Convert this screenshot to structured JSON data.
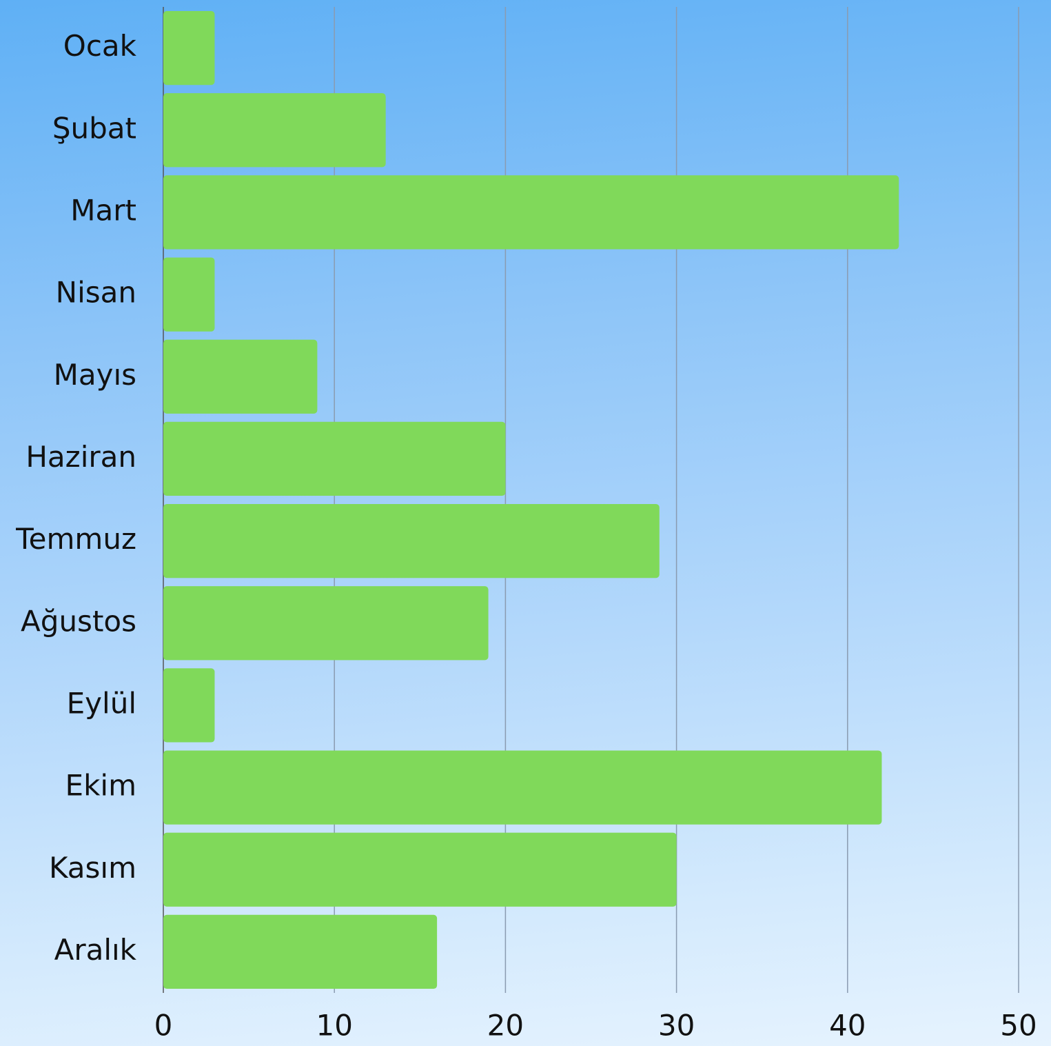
{
  "chart_data": {
    "type": "bar",
    "orientation": "horizontal",
    "categories": [
      "Ocak",
      "Şubat",
      "Mart",
      "Nisan",
      "Mayıs",
      "Haziran",
      "Temmuz",
      "Ağustos",
      "Eylül",
      "Ekim",
      "Kasım",
      "Aralık"
    ],
    "values": [
      3,
      13,
      43,
      3,
      9,
      20,
      29,
      19,
      3,
      42,
      30,
      16
    ],
    "color": "#80d95a",
    "xlim": [
      0,
      50
    ],
    "xticks": [
      0,
      10,
      20,
      30,
      40,
      50
    ],
    "grid": true
  }
}
